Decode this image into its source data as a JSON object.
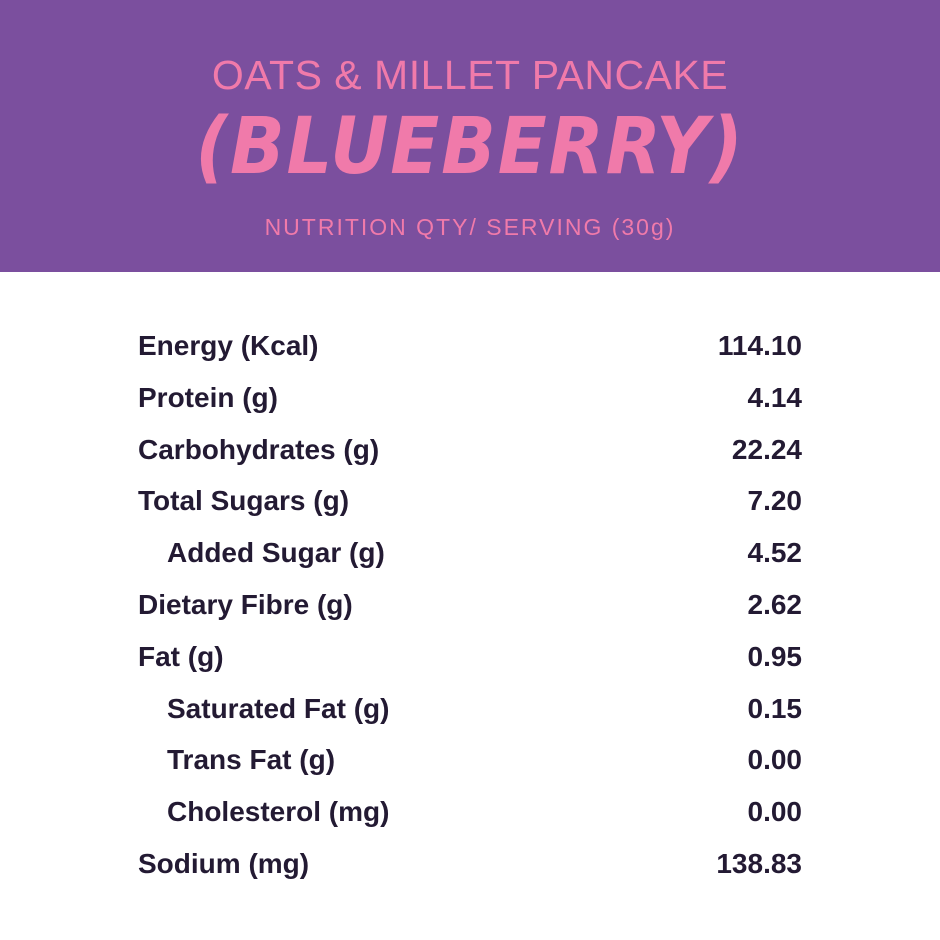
{
  "header": {
    "background_color": "#7b4f9e",
    "accent_color": "#f07aaa",
    "title_line1": "OATS & MILLET PANCAKE",
    "title_line2": "(BLUEBERRY)",
    "subtitle": "NUTRITION QTY/ SERVING (30g)"
  },
  "nutrition": {
    "text_color": "#231a33",
    "rows": [
      {
        "label": "Energy (Kcal)",
        "value": "114.10",
        "indent": false
      },
      {
        "label": "Protein (g)",
        "value": "4.14",
        "indent": false
      },
      {
        "label": "Carbohydrates (g)",
        "value": "22.24",
        "indent": false
      },
      {
        "label": "Total Sugars (g)",
        "value": "7.20",
        "indent": false
      },
      {
        "label": "Added Sugar (g)",
        "value": "4.52",
        "indent": true
      },
      {
        "label": "Dietary Fibre (g)",
        "value": "2.62",
        "indent": false
      },
      {
        "label": "Fat (g)",
        "value": "0.95",
        "indent": false
      },
      {
        "label": "Saturated Fat (g)",
        "value": "0.15",
        "indent": true
      },
      {
        "label": "Trans Fat (g)",
        "value": "0.00",
        "indent": true
      },
      {
        "label": "Cholesterol (mg)",
        "value": "0.00",
        "indent": true
      },
      {
        "label": "Sodium (mg)",
        "value": "138.83",
        "indent": false
      }
    ]
  }
}
